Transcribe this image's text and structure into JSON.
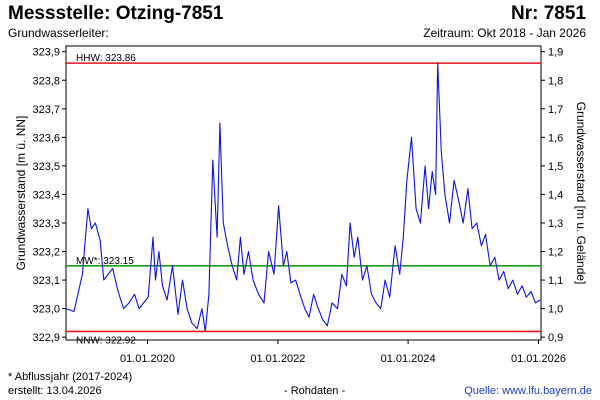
{
  "header": {
    "station": "Messstelle: Otzing-7851",
    "number": "Nr: 7851",
    "aquifer": "Grundwasserleiter:",
    "period": "Zeitraum: Okt 2018 - Jan 2026"
  },
  "footer": {
    "note": "* Abflussjahr (2017-2024)",
    "created": "erstellt:  13.04.2026",
    "raw": "- Rohdaten -",
    "source": "Quelle: www.lfu.bayern.de"
  },
  "chart_data": {
    "type": "line",
    "ylabel": "Grundwasserstand [m ü. NN]",
    "y2label": "Grundwasserstand [m u. Gelände]",
    "ylim": [
      322.89,
      323.92
    ],
    "y_ticks": [
      "322,9",
      "323,0",
      "323,1",
      "323,2",
      "323,3",
      "323,4",
      "323,5",
      "323,6",
      "323,7",
      "323,8",
      "323,9"
    ],
    "y_tick_values": [
      322.9,
      323.0,
      323.1,
      323.2,
      323.3,
      323.4,
      323.5,
      323.6,
      323.7,
      323.8,
      323.9
    ],
    "y2_ticks": [
      "0,9",
      "1,0",
      "1,1",
      "1,2",
      "1,3",
      "1,4",
      "1,5",
      "1,6",
      "1,7",
      "1,8",
      "1,9"
    ],
    "xlim": [
      "2018-10-01",
      "2026-01-15"
    ],
    "x_ticks": [
      "01.01.2020",
      "01.01.2022",
      "01.01.2024",
      "01.01.2026"
    ],
    "x_tick_dates": [
      "2020-01-01",
      "2022-01-01",
      "2024-01-01",
      "2026-01-01"
    ],
    "reference_lines": [
      {
        "label": "HHW: 323.86",
        "value": 323.86,
        "color": "#e8141c"
      },
      {
        "label": "MW*: 323.15",
        "value": 323.15,
        "color": "#1a9a1a"
      },
      {
        "label": "NNW: 322.92",
        "value": 322.92,
        "color": "#e8141c"
      }
    ],
    "series": [
      {
        "color": "#0a14e0",
        "x": [
          "2018-10-01",
          "2018-11-15",
          "2019-01-01",
          "2019-02-01",
          "2019-02-20",
          "2019-03-15",
          "2019-04-10",
          "2019-05-01",
          "2019-05-25",
          "2019-06-20",
          "2019-07-20",
          "2019-08-20",
          "2019-09-20",
          "2019-10-20",
          "2019-11-15",
          "2019-12-10",
          "2020-01-05",
          "2020-02-01",
          "2020-02-15",
          "2020-03-05",
          "2020-03-25",
          "2020-04-20",
          "2020-05-20",
          "2020-06-20",
          "2020-07-15",
          "2020-08-10",
          "2020-09-05",
          "2020-10-05",
          "2020-11-01",
          "2020-11-20",
          "2020-12-10",
          "2021-01-01",
          "2021-01-25",
          "2021-02-10",
          "2021-03-01",
          "2021-03-25",
          "2021-04-20",
          "2021-05-15",
          "2021-06-05",
          "2021-06-25",
          "2021-07-20",
          "2021-08-15",
          "2021-09-15",
          "2021-10-15",
          "2021-11-10",
          "2021-12-10",
          "2022-01-05",
          "2022-02-01",
          "2022-02-20",
          "2022-03-15",
          "2022-04-10",
          "2022-05-05",
          "2022-06-01",
          "2022-06-25",
          "2022-07-20",
          "2022-08-15",
          "2022-09-10",
          "2022-10-05",
          "2022-11-01",
          "2022-12-01",
          "2022-12-25",
          "2023-01-20",
          "2023-02-10",
          "2023-03-05",
          "2023-03-25",
          "2023-04-20",
          "2023-05-15",
          "2023-06-10",
          "2023-07-05",
          "2023-08-01",
          "2023-08-25",
          "2023-09-20",
          "2023-10-20",
          "2023-11-15",
          "2023-12-05",
          "2023-12-25",
          "2024-01-20",
          "2024-02-15",
          "2024-03-10",
          "2024-04-05",
          "2024-04-25",
          "2024-05-15",
          "2024-06-03",
          "2024-06-15",
          "2024-07-05",
          "2024-07-25",
          "2024-08-20",
          "2024-09-15",
          "2024-10-10",
          "2024-11-05",
          "2024-12-01",
          "2024-12-25",
          "2025-01-20",
          "2025-02-15",
          "2025-03-10",
          "2025-04-05",
          "2025-05-01",
          "2025-05-25",
          "2025-06-20",
          "2025-07-15",
          "2025-08-10",
          "2025-09-05",
          "2025-10-01",
          "2025-10-25",
          "2025-11-20",
          "2025-12-15",
          "2026-01-10"
        ],
        "y": [
          323.0,
          322.99,
          323.12,
          323.35,
          323.28,
          323.3,
          323.24,
          323.1,
          323.12,
          323.14,
          323.06,
          323.0,
          323.02,
          323.05,
          323.0,
          323.02,
          323.04,
          323.25,
          323.1,
          323.2,
          323.08,
          323.03,
          323.15,
          322.98,
          323.1,
          323.0,
          322.95,
          322.93,
          323.0,
          322.92,
          323.05,
          323.52,
          323.25,
          323.65,
          323.3,
          323.22,
          323.15,
          323.1,
          323.25,
          323.12,
          323.2,
          323.1,
          323.05,
          323.02,
          323.2,
          323.12,
          323.36,
          323.15,
          323.2,
          323.09,
          323.1,
          323.05,
          323.0,
          322.97,
          323.05,
          323.0,
          322.96,
          322.94,
          323.02,
          323.0,
          323.12,
          323.08,
          323.3,
          323.18,
          323.25,
          323.1,
          323.15,
          323.05,
          323.02,
          323.0,
          323.1,
          323.04,
          323.22,
          323.12,
          323.25,
          323.45,
          323.6,
          323.35,
          323.3,
          323.5,
          323.35,
          323.48,
          323.4,
          323.86,
          323.55,
          323.4,
          323.3,
          323.45,
          323.38,
          323.3,
          323.42,
          323.28,
          323.3,
          323.22,
          323.26,
          323.15,
          323.18,
          323.1,
          323.13,
          323.07,
          323.1,
          323.05,
          323.08,
          323.04,
          323.06,
          323.02,
          323.03
        ]
      }
    ]
  }
}
